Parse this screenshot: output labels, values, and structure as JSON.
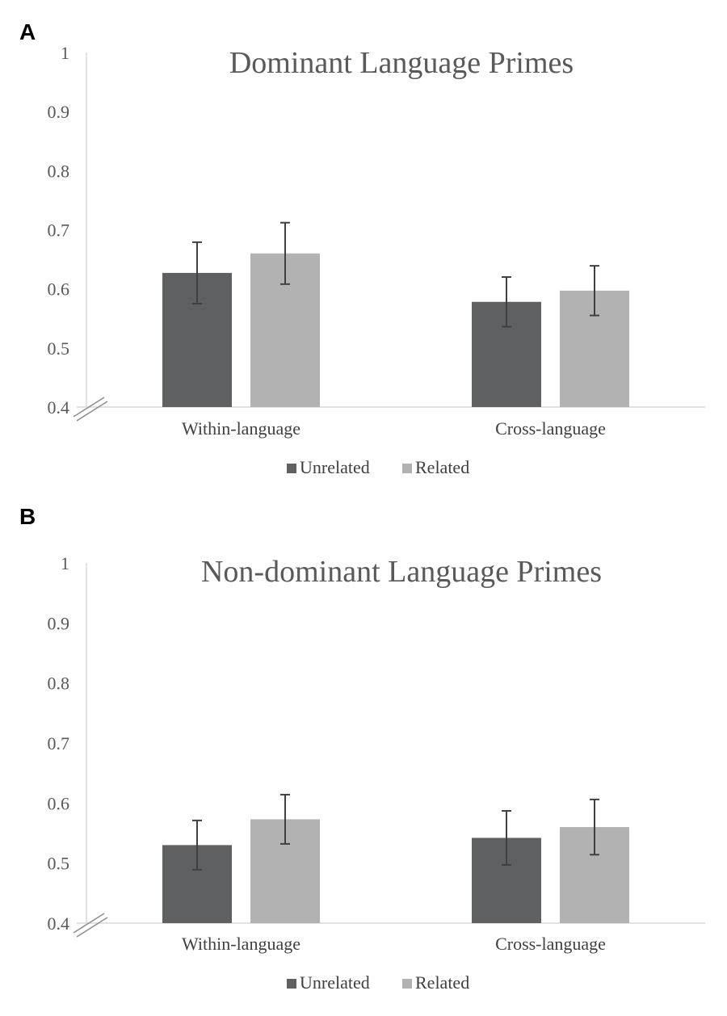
{
  "chart_data": [
    {
      "panel": "A",
      "type": "bar",
      "title": "Dominant Language Primes",
      "xlabel": "",
      "ylabel": "",
      "ylim": [
        0.4,
        1
      ],
      "yticks": [
        "0.4",
        "0.5",
        "0.6",
        "0.7",
        "0.8",
        "0.9",
        "1"
      ],
      "axis_break": true,
      "grid": false,
      "legend_position": "bottom",
      "categories": [
        "Within-language",
        "Cross-language"
      ],
      "series": [
        {
          "name": "Unrelated",
          "color": "#5f6062",
          "values": [
            0.627,
            0.578
          ],
          "error": [
            0.052,
            0.042
          ]
        },
        {
          "name": "Related",
          "color": "#b2b2b2",
          "values": [
            0.66,
            0.597
          ],
          "error": [
            0.052,
            0.042
          ]
        }
      ]
    },
    {
      "panel": "B",
      "type": "bar",
      "title": "Non-dominant Language Primes",
      "xlabel": "",
      "ylabel": "",
      "ylim": [
        0.4,
        1
      ],
      "yticks": [
        "0.4",
        "0.5",
        "0.6",
        "0.7",
        "0.8",
        "0.9",
        "1"
      ],
      "axis_break": true,
      "grid": false,
      "legend_position": "bottom",
      "categories": [
        "Within-language",
        "Cross-language"
      ],
      "series": [
        {
          "name": "Unrelated",
          "color": "#5f6062",
          "values": [
            0.53,
            0.542
          ],
          "error": [
            0.041,
            0.045
          ]
        },
        {
          "name": "Related",
          "color": "#b2b2b2",
          "values": [
            0.573,
            0.56
          ],
          "error": [
            0.041,
            0.046
          ]
        }
      ]
    }
  ]
}
